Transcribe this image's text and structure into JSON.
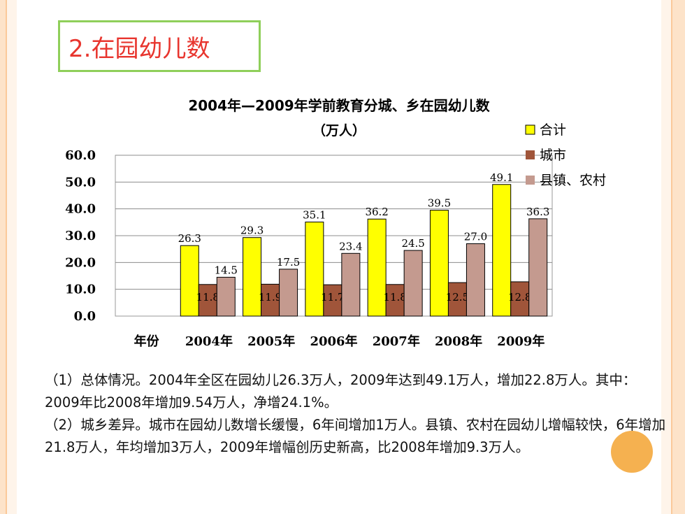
{
  "slide": {
    "heading": "2.在园幼儿数",
    "paragraphs": [
      "（1）总体情况。2004年全区在园幼儿26.3万人，2009年达到49.1万人，增加22.8万人。其中：2009年比2008年增加9.54万人，净增24.1%。",
      "（2）城乡差异。城市在园幼儿数增长缓慢，6年间增加1万人。县镇、农村在园幼儿增幅较快，6年增加21.8万人，年均增加3万人，2009年增幅创历史新高，比2008年增加9.3万人。"
    ]
  },
  "colors": {
    "heading": "#e8352e",
    "title_box_border": "#8fcf5a",
    "series_total": "#ffff00",
    "series_city": "#a0553a",
    "series_county_rural": "#c49a8f",
    "accent_circle": "#f4a93d"
  },
  "chart_data": {
    "type": "bar",
    "title": "2004年—2009年学前教育分城、乡在园幼儿数",
    "subtitle": "（万人）",
    "xlabel": "年份",
    "categories": [
      "2004年",
      "2005年",
      "2006年",
      "2007年",
      "2008年",
      "2009年"
    ],
    "series": [
      {
        "name": "合计",
        "values": [
          26.3,
          29.3,
          35.1,
          36.2,
          39.5,
          49.1
        ]
      },
      {
        "name": "城市",
        "values": [
          11.8,
          11.9,
          11.7,
          11.8,
          12.5,
          12.8
        ]
      },
      {
        "name": "县镇、农村",
        "values": [
          14.5,
          17.5,
          23.4,
          24.5,
          27.0,
          36.3
        ]
      }
    ],
    "ylim": [
      0,
      60
    ],
    "yticks": [
      "0.0",
      "10.0",
      "20.0",
      "30.0",
      "40.0",
      "50.0",
      "60.0"
    ],
    "grid": true,
    "legend_position": "top-right"
  }
}
